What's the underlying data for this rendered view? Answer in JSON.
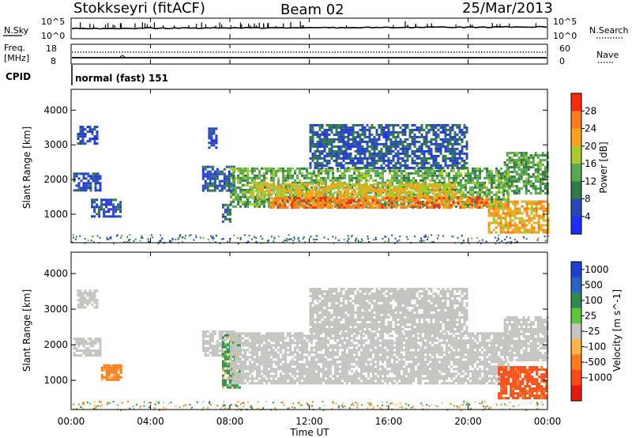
{
  "header": {
    "station": "Stokkseyri (fitACF)",
    "beam": "Beam 02",
    "date": "25/Mar/2013"
  },
  "noise_panel": {
    "left_label": "N.Sky",
    "right_label": "N.Search",
    "left_ticks": [
      "10^5",
      "10^0"
    ],
    "right_ticks": [
      "10^5",
      "10^0"
    ],
    "right_legend_style": "dotted"
  },
  "freq_panel": {
    "left_label_1": "Freq.",
    "left_label_2": "[MHz]",
    "left_ticks": [
      "18",
      "8"
    ],
    "right_label": "Nave",
    "right_ticks": [
      "60",
      "0"
    ],
    "right_legend_style": "dotted"
  },
  "cpid_panel": {
    "label": "CPID",
    "value": "normal (fast) 151"
  },
  "axes": {
    "x_ticks": [
      "00:00",
      "04:00",
      "08:00",
      "12:00",
      "16:00",
      "20:00",
      "00:00"
    ],
    "x_label": "Time UT",
    "y_ticks": [
      "1000",
      "2000",
      "3000",
      "4000"
    ],
    "y_label": "Slant Range [km]",
    "y_range_km": [
      180,
      4600
    ]
  },
  "power_colorbar": {
    "title": "Power [dB]",
    "tick_labels": [
      "4",
      "8",
      "12",
      "16",
      "20",
      "24",
      "28"
    ],
    "colors": [
      "#1f2dff",
      "#2848b8",
      "#2f7a48",
      "#58a850",
      "#a9c92e",
      "#ffa21a",
      "#ff7a1a",
      "#ff2a0a"
    ]
  },
  "velocity_colorbar": {
    "title": "Velocity [m s^-1]",
    "tick_labels": [
      "1000",
      "500",
      "100",
      "25",
      "-25",
      "-100",
      "-500",
      "-1000"
    ],
    "colors": [
      "#1f3fd2",
      "#2a64c8",
      "#2f8a52",
      "#5ac83a",
      "#c4c4c0",
      "#ffb44a",
      "#ff7a1a",
      "#ff4a14",
      "#e8180c"
    ]
  },
  "chart_data": {
    "type": "heatmap",
    "title": "Stokkseyri (fitACF) Beam 02 25/Mar/2013",
    "xlabel": "Time UT",
    "ylabel": "Slant Range [km]",
    "x_range_hours": [
      0,
      24
    ],
    "ylim": [
      180,
      4600
    ],
    "panels": [
      {
        "name": "Power [dB]",
        "scale": [
          0,
          30
        ],
        "regions": [
          {
            "t0": 0.1,
            "t1": 1.5,
            "r0": 1700,
            "r1": 2200,
            "value": 6
          },
          {
            "t0": 0.3,
            "t1": 1.3,
            "r0": 3050,
            "r1": 3550,
            "value": 5
          },
          {
            "t0": 1.0,
            "t1": 2.5,
            "r0": 950,
            "r1": 1450,
            "value": 6
          },
          {
            "t0": 6.6,
            "t1": 8.2,
            "r0": 1700,
            "r1": 2400,
            "value": 6
          },
          {
            "t0": 6.9,
            "t1": 7.3,
            "r0": 2900,
            "r1": 3500,
            "value": 5
          },
          {
            "t0": 7.6,
            "t1": 8.0,
            "r0": 800,
            "r1": 1300,
            "value": 9
          },
          {
            "t0": 8.0,
            "t1": 22.0,
            "r0": 1200,
            "r1": 2350,
            "value": 14
          },
          {
            "t0": 9.0,
            "t1": 19.5,
            "r0": 1450,
            "r1": 1900,
            "value": 20
          },
          {
            "t0": 10.0,
            "t1": 21.0,
            "r0": 1200,
            "r1": 1500,
            "value": 26
          },
          {
            "t0": 12.0,
            "t1": 20.0,
            "r0": 2350,
            "r1": 3600,
            "value": 7
          },
          {
            "t0": 21.0,
            "t1": 24.0,
            "r0": 500,
            "r1": 1400,
            "value": 22
          },
          {
            "t0": 21.8,
            "t1": 24.0,
            "r0": 1600,
            "r1": 2800,
            "value": 13
          }
        ]
      },
      {
        "name": "Velocity [m s^-1]",
        "scale": [
          -1000,
          1000
        ],
        "regions": [
          {
            "t0": 0.1,
            "t1": 1.5,
            "r0": 1700,
            "r1": 2200,
            "value": 0
          },
          {
            "t0": 0.3,
            "t1": 1.3,
            "r0": 3050,
            "r1": 3550,
            "value": 0
          },
          {
            "t0": 1.5,
            "t1": 2.5,
            "r0": 1050,
            "r1": 1450,
            "value": -250
          },
          {
            "t0": 6.6,
            "t1": 8.2,
            "r0": 1700,
            "r1": 2400,
            "value": 0
          },
          {
            "t0": 7.6,
            "t1": 8.5,
            "r0": 800,
            "r1": 2300,
            "value": 150
          },
          {
            "t0": 8.0,
            "t1": 22.0,
            "r0": 900,
            "r1": 2350,
            "value": 0
          },
          {
            "t0": 12.0,
            "t1": 20.0,
            "r0": 2350,
            "r1": 3600,
            "value": 0
          },
          {
            "t0": 21.5,
            "t1": 24.0,
            "r0": 500,
            "r1": 1400,
            "value": -700
          },
          {
            "t0": 21.8,
            "t1": 24.0,
            "r0": 1600,
            "r1": 2800,
            "value": 0
          }
        ]
      }
    ]
  }
}
